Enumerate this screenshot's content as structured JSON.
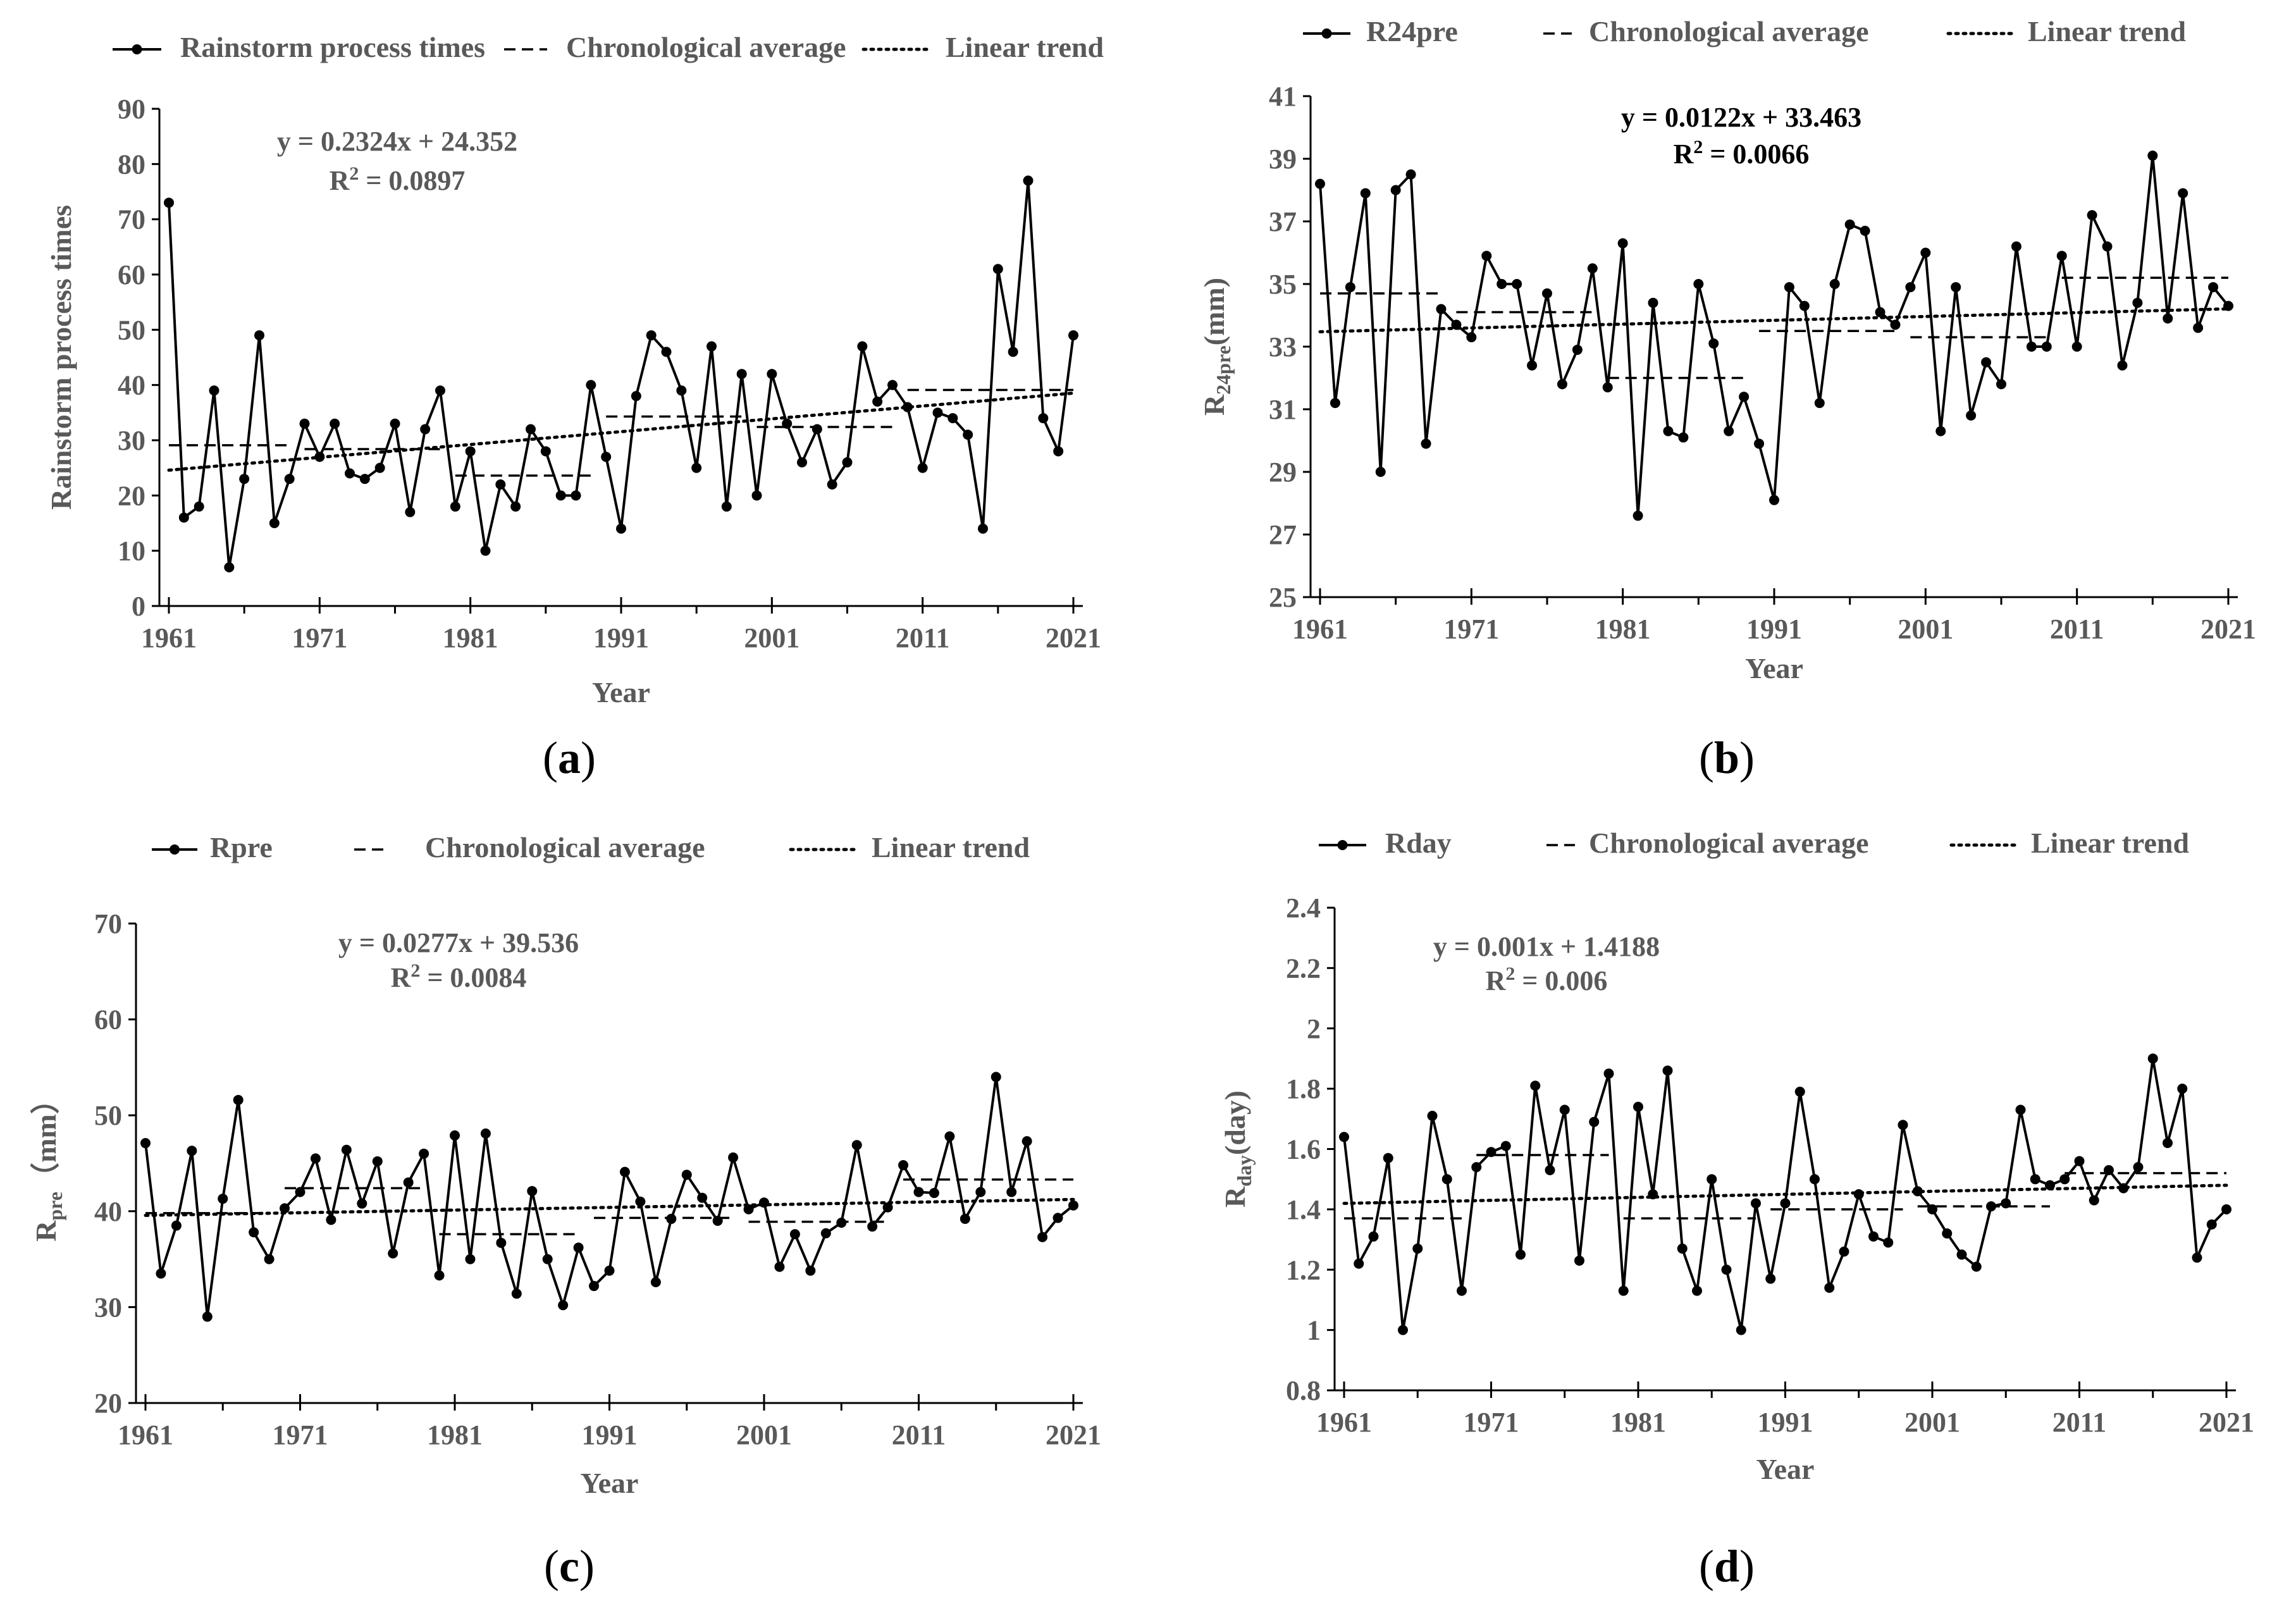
{
  "chart_data": [
    {
      "type": "line",
      "panel_label": "a",
      "xlabel": "Year",
      "ylabel": "Rainstorm process times",
      "ylim": [
        0,
        90
      ],
      "ytick_step": 10,
      "ytick_labels": [
        "0",
        "10",
        "20",
        "30",
        "40",
        "50",
        "60",
        "70",
        "80",
        "90"
      ],
      "xlim": [
        1961,
        2021
      ],
      "xtick_labels": [
        "1961",
        "1971",
        "1981",
        "1991",
        "2001",
        "2011",
        "2021"
      ],
      "legend": [
        "Rainstorm process times",
        "Chronological average",
        "Linear trend"
      ],
      "equation": "y = 0.2324x + 24.352",
      "r2_prefix": "R",
      "r2_sup": "2",
      "r2_value": " = 0.0897",
      "trend": {
        "slope": 0.2324,
        "intercept": 24.352
      },
      "averages": [
        {
          "start": 1961,
          "end": 1969,
          "value": 29.1
        },
        {
          "start": 1970,
          "end": 1979,
          "value": 28.4
        },
        {
          "start": 1980,
          "end": 1989,
          "value": 23.6
        },
        {
          "start": 1990,
          "end": 1999,
          "value": 34.3
        },
        {
          "start": 2000,
          "end": 2009,
          "value": 32.4
        },
        {
          "start": 2010,
          "end": 2021,
          "value": 39.1
        }
      ],
      "x": [
        1961,
        1962,
        1963,
        1964,
        1965,
        1966,
        1967,
        1968,
        1969,
        1970,
        1971,
        1972,
        1973,
        1974,
        1975,
        1976,
        1977,
        1978,
        1979,
        1980,
        1981,
        1982,
        1983,
        1984,
        1985,
        1986,
        1987,
        1988,
        1989,
        1990,
        1991,
        1992,
        1993,
        1994,
        1995,
        1996,
        1997,
        1998,
        1999,
        2000,
        2001,
        2002,
        2003,
        2004,
        2005,
        2006,
        2007,
        2008,
        2009,
        2010,
        2011,
        2012,
        2013,
        2014,
        2015,
        2016,
        2017,
        2018,
        2019,
        2020,
        2021
      ],
      "values": [
        73,
        16,
        18,
        39,
        7,
        23,
        49,
        15,
        23,
        33,
        27,
        33,
        24,
        23,
        25,
        33,
        17,
        32,
        39,
        18,
        28,
        10,
        22,
        18,
        32,
        28,
        20,
        20,
        40,
        27,
        14,
        38,
        49,
        46,
        39,
        25,
        47,
        18,
        42,
        20,
        42,
        33,
        26,
        32,
        22,
        26,
        47,
        37,
        40,
        36,
        25,
        35,
        34,
        31,
        14,
        61,
        46,
        77,
        34,
        28,
        49
      ]
    },
    {
      "type": "line",
      "panel_label": "b",
      "xlabel": "Year",
      "ylabel_main": "R",
      "ylabel_sub": "24pre",
      "ylabel_unit": "(mm)",
      "ylim": [
        25,
        41
      ],
      "ytick_step": 2,
      "ytick_labels": [
        "25",
        "27",
        "29",
        "31",
        "33",
        "35",
        "37",
        "39",
        "41"
      ],
      "xlim": [
        1961,
        2021
      ],
      "xtick_labels": [
        "1961",
        "1971",
        "1981",
        "1991",
        "2001",
        "2011",
        "2021"
      ],
      "legend": [
        "R24pre",
        "Chronological average",
        "Linear trend"
      ],
      "equation": "y = 0.0122x + 33.463",
      "r2_prefix": "R",
      "r2_sup": "2",
      "r2_value": " = 0.0066",
      "trend": {
        "slope": 0.0122,
        "intercept": 33.463
      },
      "averages": [
        {
          "start": 1961,
          "end": 1969,
          "value": 34.7
        },
        {
          "start": 1970,
          "end": 1979,
          "value": 34.1
        },
        {
          "start": 1980,
          "end": 1989,
          "value": 32.0
        },
        {
          "start": 1990,
          "end": 1999,
          "value": 33.5
        },
        {
          "start": 2000,
          "end": 2009,
          "value": 33.3
        },
        {
          "start": 2010,
          "end": 2021,
          "value": 35.2
        }
      ],
      "x": [
        1961,
        1962,
        1963,
        1964,
        1965,
        1966,
        1967,
        1968,
        1969,
        1970,
        1971,
        1972,
        1973,
        1974,
        1975,
        1976,
        1977,
        1978,
        1979,
        1980,
        1981,
        1982,
        1983,
        1984,
        1985,
        1986,
        1987,
        1988,
        1989,
        1990,
        1991,
        1992,
        1993,
        1994,
        1995,
        1996,
        1997,
        1998,
        1999,
        2000,
        2001,
        2002,
        2003,
        2004,
        2005,
        2006,
        2007,
        2008,
        2009,
        2010,
        2011,
        2012,
        2013,
        2014,
        2015,
        2016,
        2017,
        2018,
        2019,
        2020,
        2021
      ],
      "values": [
        38.2,
        31.2,
        34.9,
        37.9,
        29.0,
        38.0,
        38.5,
        29.9,
        34.2,
        33.7,
        33.3,
        35.9,
        35.0,
        35.0,
        32.4,
        34.7,
        31.8,
        32.9,
        35.5,
        31.7,
        36.3,
        27.6,
        34.4,
        30.3,
        30.1,
        35.0,
        33.1,
        30.3,
        31.4,
        29.9,
        28.1,
        34.9,
        34.3,
        31.2,
        35.0,
        36.9,
        36.7,
        34.1,
        33.7,
        34.9,
        36.0,
        30.3,
        34.9,
        30.8,
        32.5,
        31.8,
        36.2,
        33.0,
        33.0,
        35.9,
        33.0,
        37.2,
        36.2,
        32.4,
        34.4,
        39.1,
        33.9,
        37.9,
        33.6,
        34.9,
        34.3
      ]
    },
    {
      "type": "line",
      "panel_label": "c",
      "xlabel": "Year",
      "ylabel_main": "R",
      "ylabel_sub": "pre",
      "ylabel_unit": "（mm）",
      "ylim": [
        20,
        70
      ],
      "ytick_step": 10,
      "ytick_labels": [
        "20",
        "30",
        "40",
        "50",
        "60",
        "70"
      ],
      "xlim": [
        1961,
        2021
      ],
      "xtick_labels": [
        "1961",
        "1971",
        "1981",
        "1991",
        "2001",
        "2011",
        "2021"
      ],
      "legend": [
        "Rpre",
        "Chronological average",
        "Linear trend"
      ],
      "equation": "y = 0.0277x + 39.536",
      "r2_prefix": "R",
      "r2_sup": "2",
      "r2_value": " = 0.0084",
      "trend": {
        "slope": 0.0277,
        "intercept": 39.536
      },
      "averages": [
        {
          "start": 1961,
          "end": 1969,
          "value": 39.8
        },
        {
          "start": 1970,
          "end": 1979,
          "value": 42.4
        },
        {
          "start": 1980,
          "end": 1989,
          "value": 37.6
        },
        {
          "start": 1990,
          "end": 1999,
          "value": 39.3
        },
        {
          "start": 2000,
          "end": 2009,
          "value": 38.9
        },
        {
          "start": 2010,
          "end": 2021,
          "value": 43.3
        }
      ],
      "x": [
        1961,
        1962,
        1963,
        1964,
        1965,
        1966,
        1967,
        1968,
        1969,
        1970,
        1971,
        1972,
        1973,
        1974,
        1975,
        1976,
        1977,
        1978,
        1979,
        1980,
        1981,
        1982,
        1983,
        1984,
        1985,
        1986,
        1987,
        1988,
        1989,
        1990,
        1991,
        1992,
        1993,
        1994,
        1995,
        1996,
        1997,
        1998,
        1999,
        2000,
        2001,
        2002,
        2003,
        2004,
        2005,
        2006,
        2007,
        2008,
        2009,
        2010,
        2011,
        2012,
        2013,
        2014,
        2015,
        2016,
        2017,
        2018,
        2019,
        2020,
        2021
      ],
      "values": [
        47.1,
        33.5,
        38.5,
        46.3,
        29.0,
        41.3,
        51.6,
        37.8,
        35.0,
        40.3,
        42.0,
        45.5,
        39.1,
        46.4,
        40.8,
        45.2,
        35.6,
        43.0,
        46.0,
        33.3,
        47.9,
        35.0,
        48.1,
        36.7,
        31.4,
        42.1,
        35.0,
        30.2,
        36.2,
        32.2,
        33.8,
        44.1,
        41.0,
        32.6,
        39.2,
        43.8,
        41.4,
        39.0,
        45.6,
        40.2,
        40.9,
        34.2,
        37.6,
        33.8,
        37.7,
        38.8,
        46.9,
        38.4,
        40.4,
        44.8,
        42.0,
        41.9,
        47.8,
        39.2,
        42.0,
        54.0,
        42.0,
        47.3,
        37.3,
        39.3,
        40.6
      ]
    },
    {
      "type": "line",
      "panel_label": "d",
      "xlabel": "Year",
      "ylabel_main": "R",
      "ylabel_sub": "day",
      "ylabel_unit": "(day)",
      "ylim": [
        0.8,
        2.4
      ],
      "ytick_step": 0.2,
      "ytick_labels": [
        "0.8",
        "1",
        "1.2",
        "1.4",
        "1.6",
        "1.8",
        "2",
        "2.2",
        "2.4"
      ],
      "xlim": [
        1961,
        2021
      ],
      "xtick_labels": [
        "1961",
        "1971",
        "1981",
        "1991",
        "2001",
        "2011",
        "2021"
      ],
      "legend": [
        "Rday",
        "Chronological average",
        "Linear trend"
      ],
      "equation": "y = 0.001x + 1.4188",
      "r2_prefix": "R",
      "r2_sup": "2",
      "r2_value": " = 0.006",
      "trend": {
        "slope": 0.001,
        "intercept": 1.4188
      },
      "averages": [
        {
          "start": 1961,
          "end": 1969,
          "value": 1.37
        },
        {
          "start": 1970,
          "end": 1979,
          "value": 1.58
        },
        {
          "start": 1980,
          "end": 1989,
          "value": 1.37
        },
        {
          "start": 1990,
          "end": 1999,
          "value": 1.4
        },
        {
          "start": 2000,
          "end": 2009,
          "value": 1.41
        },
        {
          "start": 2010,
          "end": 2021,
          "value": 1.52
        }
      ],
      "x": [
        1961,
        1962,
        1963,
        1964,
        1965,
        1966,
        1967,
        1968,
        1969,
        1970,
        1971,
        1972,
        1973,
        1974,
        1975,
        1976,
        1977,
        1978,
        1979,
        1980,
        1981,
        1982,
        1983,
        1984,
        1985,
        1986,
        1987,
        1988,
        1989,
        1990,
        1991,
        1992,
        1993,
        1994,
        1995,
        1996,
        1997,
        1998,
        1999,
        2000,
        2001,
        2002,
        2003,
        2004,
        2005,
        2006,
        2007,
        2008,
        2009,
        2010,
        2011,
        2012,
        2013,
        2014,
        2015,
        2016,
        2017,
        2018,
        2019,
        2020,
        2021
      ],
      "values": [
        1.64,
        1.22,
        1.31,
        1.57,
        1.0,
        1.27,
        1.71,
        1.5,
        1.13,
        1.54,
        1.59,
        1.61,
        1.25,
        1.81,
        1.53,
        1.73,
        1.23,
        1.69,
        1.85,
        1.13,
        1.74,
        1.45,
        1.86,
        1.27,
        1.13,
        1.5,
        1.2,
        1.0,
        1.42,
        1.17,
        1.42,
        1.79,
        1.5,
        1.14,
        1.26,
        1.45,
        1.31,
        1.29,
        1.68,
        1.46,
        1.4,
        1.32,
        1.25,
        1.21,
        1.41,
        1.42,
        1.73,
        1.5,
        1.48,
        1.5,
        1.56,
        1.43,
        1.53,
        1.47,
        1.54,
        1.9,
        1.62,
        1.8,
        1.24,
        1.35,
        1.4
      ]
    }
  ]
}
